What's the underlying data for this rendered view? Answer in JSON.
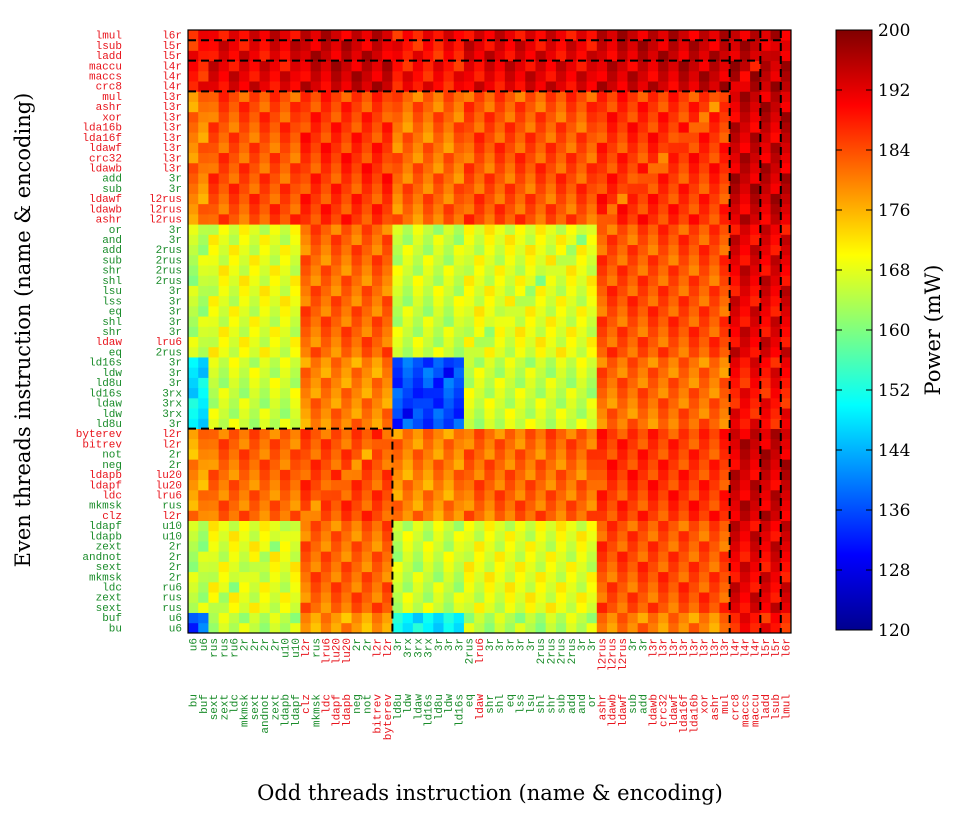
{
  "chart_data": {
    "type": "heatmap",
    "title": "",
    "xlabel": "Odd threads instruction (name & encoding)",
    "ylabel": "Even threads instruction (name & encoding)",
    "colorbar": {
      "label": "Power (mW)",
      "min": 120,
      "max": 200,
      "ticks": [
        120,
        128,
        136,
        144,
        152,
        160,
        168,
        176,
        184,
        192,
        200
      ],
      "colormap": "jet"
    },
    "group_colors": {
      "r": "#e8141c",
      "g": "#1a8c2a"
    },
    "instructions": [
      {
        "name": "bu",
        "enc": "u6",
        "c": "g"
      },
      {
        "name": "buf",
        "enc": "u6",
        "c": "g"
      },
      {
        "name": "sext",
        "enc": "rus",
        "c": "g"
      },
      {
        "name": "zext",
        "enc": "rus",
        "c": "g"
      },
      {
        "name": "ldc",
        "enc": "ru6",
        "c": "g"
      },
      {
        "name": "mkmsk",
        "enc": "2r",
        "c": "g"
      },
      {
        "name": "sext",
        "enc": "2r",
        "c": "g"
      },
      {
        "name": "andnot",
        "enc": "2r",
        "c": "g"
      },
      {
        "name": "zext",
        "enc": "2r",
        "c": "g"
      },
      {
        "name": "ldapb",
        "enc": "u10",
        "c": "g"
      },
      {
        "name": "ldapf",
        "enc": "u10",
        "c": "g"
      },
      {
        "name": "clz",
        "enc": "l2r",
        "c": "r"
      },
      {
        "name": "mkmsk",
        "enc": "rus",
        "c": "g"
      },
      {
        "name": "ldc",
        "enc": "lru6",
        "c": "r"
      },
      {
        "name": "ldapf",
        "enc": "lu20",
        "c": "r"
      },
      {
        "name": "ldapb",
        "enc": "lu20",
        "c": "r"
      },
      {
        "name": "neg",
        "enc": "2r",
        "c": "g"
      },
      {
        "name": "not",
        "enc": "2r",
        "c": "g"
      },
      {
        "name": "bitrev",
        "enc": "l2r",
        "c": "r"
      },
      {
        "name": "byterev",
        "enc": "l2r",
        "c": "r"
      },
      {
        "name": "ld8u",
        "enc": "3r",
        "c": "g"
      },
      {
        "name": "ldw",
        "enc": "3rx",
        "c": "g"
      },
      {
        "name": "ldaw",
        "enc": "3rx",
        "c": "g"
      },
      {
        "name": "ld16s",
        "enc": "3rx",
        "c": "g"
      },
      {
        "name": "ld8u",
        "enc": "3r",
        "c": "g"
      },
      {
        "name": "ldw",
        "enc": "3r",
        "c": "g"
      },
      {
        "name": "ld16s",
        "enc": "3r",
        "c": "g"
      },
      {
        "name": "eq",
        "enc": "2rus",
        "c": "g"
      },
      {
        "name": "ldaw",
        "enc": "lru6",
        "c": "r"
      },
      {
        "name": "shr",
        "enc": "3r",
        "c": "g"
      },
      {
        "name": "shl",
        "enc": "3r",
        "c": "g"
      },
      {
        "name": "eq",
        "enc": "3r",
        "c": "g"
      },
      {
        "name": "lss",
        "enc": "3r",
        "c": "g"
      },
      {
        "name": "lsu",
        "enc": "3r",
        "c": "g"
      },
      {
        "name": "shl",
        "enc": "2rus",
        "c": "g"
      },
      {
        "name": "shr",
        "enc": "2rus",
        "c": "g"
      },
      {
        "name": "sub",
        "enc": "2rus",
        "c": "g"
      },
      {
        "name": "add",
        "enc": "2rus",
        "c": "g"
      },
      {
        "name": "and",
        "enc": "3r",
        "c": "g"
      },
      {
        "name": "or",
        "enc": "3r",
        "c": "g"
      },
      {
        "name": "ashr",
        "enc": "l2rus",
        "c": "r"
      },
      {
        "name": "ldawb",
        "enc": "l2rus",
        "c": "r"
      },
      {
        "name": "ldawf",
        "enc": "l2rus",
        "c": "r"
      },
      {
        "name": "sub",
        "enc": "3r",
        "c": "g"
      },
      {
        "name": "add",
        "enc": "3r",
        "c": "g"
      },
      {
        "name": "ldawb",
        "enc": "l3r",
        "c": "r"
      },
      {
        "name": "crc32",
        "enc": "l3r",
        "c": "r"
      },
      {
        "name": "ldawf",
        "enc": "l3r",
        "c": "r"
      },
      {
        "name": "lda16f",
        "enc": "l3r",
        "c": "r"
      },
      {
        "name": "lda16b",
        "enc": "l3r",
        "c": "r"
      },
      {
        "name": "xor",
        "enc": "l3r",
        "c": "r"
      },
      {
        "name": "ashr",
        "enc": "l3r",
        "c": "r"
      },
      {
        "name": "mul",
        "enc": "l3r",
        "c": "r"
      },
      {
        "name": "crc8",
        "enc": "l4r",
        "c": "r"
      },
      {
        "name": "maccs",
        "enc": "l4r",
        "c": "r"
      },
      {
        "name": "maccu",
        "enc": "l4r",
        "c": "r"
      },
      {
        "name": "ladd",
        "enc": "l5r",
        "c": "r"
      },
      {
        "name": "lsub",
        "enc": "l5r",
        "c": "r"
      },
      {
        "name": "lmul",
        "enc": "l6r",
        "c": "r"
      }
    ],
    "group_boundaries_after_index": [
      19,
      52,
      55,
      57
    ],
    "approx_power_mw": {
      "base": 168,
      "ld_loads_group_3r_3rx": 150,
      "ld_loads_cross": 136,
      "l2r_lu20_lru6_group": 184,
      "l3r_l2rus_group": 186,
      "l4r_l5r_l6r_group": 195,
      "bu_buf_cross": 140
    }
  }
}
